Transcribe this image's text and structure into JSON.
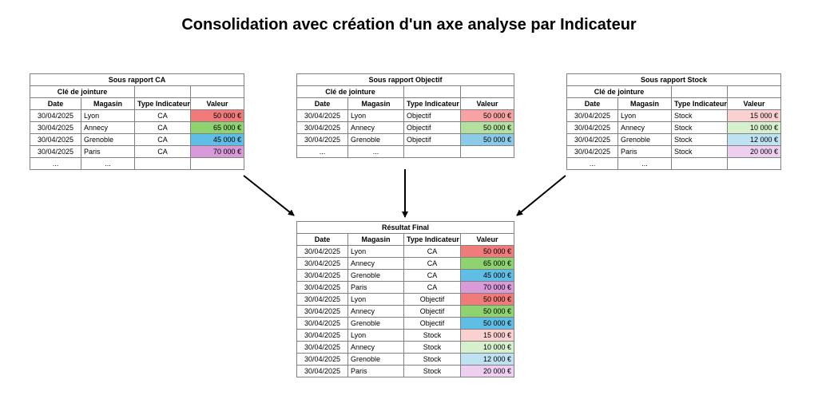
{
  "title": "Consolidation avec création d'un axe analyse par Indicateur",
  "headers": {
    "date": "Date",
    "magasin": "Magasin",
    "type": "Type Indicateur",
    "valeur": "Valeur",
    "cle": "Clé de jointure"
  },
  "ellipsis": "...",
  "colors": {
    "ca_lyon": "#f07b7b",
    "ca_annecy": "#8ed36f",
    "ca_grenoble": "#5fbde6",
    "ca_paris": "#d99ad9",
    "obj_lyon": "#f7a3a3",
    "obj_annecy": "#b3e09e",
    "obj_grenoble": "#8ccbe8",
    "stock_lyon": "#fbd0d0",
    "stock_annecy": "#d6efcc",
    "stock_grenoble": "#bfe2f3",
    "stock_paris": "#efcfef"
  },
  "sub_ca": {
    "caption": "Sous rapport CA",
    "rows": [
      {
        "date": "30/04/2025",
        "magasin": "Lyon",
        "type": "CA",
        "valeur": "50 000 €"
      },
      {
        "date": "30/04/2025",
        "magasin": "Annecy",
        "type": "CA",
        "valeur": "65 000 €"
      },
      {
        "date": "30/04/2025",
        "magasin": "Grenoble",
        "type": "CA",
        "valeur": "45 000 €"
      },
      {
        "date": "30/04/2025",
        "magasin": "Paris",
        "type": "CA",
        "valeur": "70 000 €"
      }
    ]
  },
  "sub_obj": {
    "caption": "Sous rapport Objectif",
    "rows": [
      {
        "date": "30/04/2025",
        "magasin": "Lyon",
        "type": "Objectif",
        "valeur": "50 000 €"
      },
      {
        "date": "30/04/2025",
        "magasin": "Annecy",
        "type": "Objectif",
        "valeur": "50 000 €"
      },
      {
        "date": "30/04/2025",
        "magasin": "Grenoble",
        "type": "Objectif",
        "valeur": "50 000 €"
      }
    ]
  },
  "sub_stock": {
    "caption": "Sous rapport Stock",
    "rows": [
      {
        "date": "30/04/2025",
        "magasin": "Lyon",
        "type": "Stock",
        "valeur": "15 000 €"
      },
      {
        "date": "30/04/2025",
        "magasin": "Annecy",
        "type": "Stock",
        "valeur": "10 000 €"
      },
      {
        "date": "30/04/2025",
        "magasin": "Grenoble",
        "type": "Stock",
        "valeur": "12 000 €"
      },
      {
        "date": "30/04/2025",
        "magasin": "Paris",
        "type": "Stock",
        "valeur": "20 000 €"
      }
    ]
  },
  "final": {
    "caption": "Résultat  Final",
    "rows": [
      {
        "date": "30/04/2025",
        "magasin": "Lyon",
        "type": "CA",
        "valeur": "50 000 €"
      },
      {
        "date": "30/04/2025",
        "magasin": "Annecy",
        "type": "CA",
        "valeur": "65 000 €"
      },
      {
        "date": "30/04/2025",
        "magasin": "Grenoble",
        "type": "CA",
        "valeur": "45 000 €"
      },
      {
        "date": "30/04/2025",
        "magasin": "Paris",
        "type": "CA",
        "valeur": "70 000 €"
      },
      {
        "date": "30/04/2025",
        "magasin": "Lyon",
        "type": "Objectif",
        "valeur": "50 000 €"
      },
      {
        "date": "30/04/2025",
        "magasin": "Annecy",
        "type": "Objectif",
        "valeur": "50 000 €"
      },
      {
        "date": "30/04/2025",
        "magasin": "Grenoble",
        "type": "Objectif",
        "valeur": "50 000 €"
      },
      {
        "date": "30/04/2025",
        "magasin": "Lyon",
        "type": "Stock",
        "valeur": "15 000 €"
      },
      {
        "date": "30/04/2025",
        "magasin": "Annecy",
        "type": "Stock",
        "valeur": "10 000 €"
      },
      {
        "date": "30/04/2025",
        "magasin": "Grenoble",
        "type": "Stock",
        "valeur": "12 000 €"
      },
      {
        "date": "30/04/2025",
        "magasin": "Paris",
        "type": "Stock",
        "valeur": "20 000 €"
      }
    ]
  }
}
